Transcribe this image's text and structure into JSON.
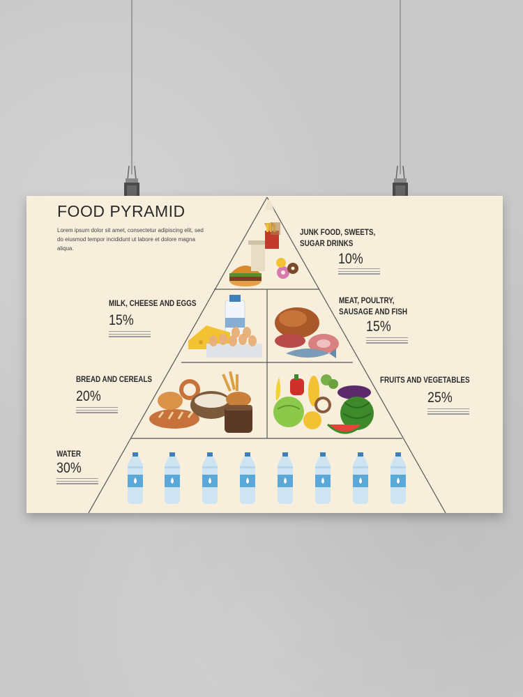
{
  "poster": {
    "title": "FOOD PYRAMID",
    "intro": "Lorem ipsum dolor sit amet, consectetur adipiscing elit, sed do eiusmod tempor incididunt ut labore et dolore magna aliqua."
  },
  "groups": {
    "junk": {
      "label_1": "JUNK FOOD, SWEETS,",
      "label_2": "SUGAR DRINKS",
      "percent": "10%"
    },
    "dairy": {
      "label_1": "MILK, CHEESE AND EGGS",
      "percent": "15%"
    },
    "meat": {
      "label_1": "MEAT, POULTRY,",
      "label_2": "SAUSAGE AND FISH",
      "percent": "15%"
    },
    "bread": {
      "label_1": "BREAD AND CEREALS",
      "percent": "20%"
    },
    "fruits": {
      "label_1": "FRUITS AND VEGETABLES",
      "percent": "25%"
    },
    "water": {
      "label_1": "WATER",
      "percent": "30%"
    }
  },
  "colors": {
    "poster_bg": "#f7efdc",
    "wall": "#c9c9c9",
    "pyramid_line": "#555555",
    "bottle": "#5aa8d8",
    "bottle_cap": "#3f7fb8"
  }
}
